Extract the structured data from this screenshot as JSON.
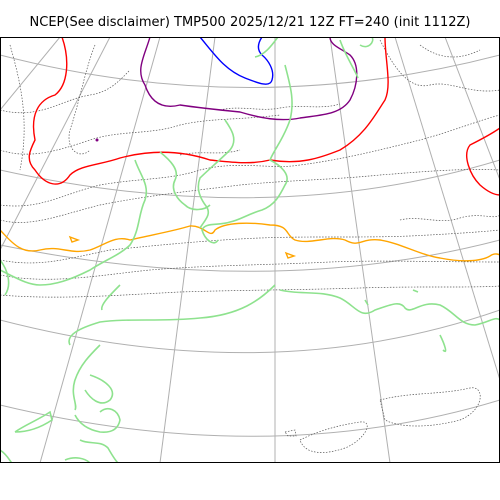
{
  "title": "NCEP(See disclaimer) TMP500 2025/12/21 12Z FT=240 (init 1112Z)",
  "colors": {
    "coastline": "#8ee28e",
    "graticule": "#b0b0b0",
    "contour_thin": "#555555",
    "contour_red": "#ff0000",
    "contour_orange": "#ffa500",
    "contour_blue": "#0000ff",
    "contour_purple": "#800080"
  }
}
